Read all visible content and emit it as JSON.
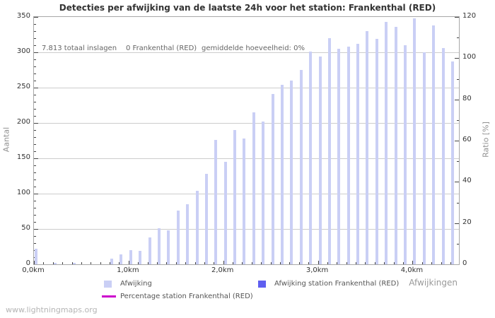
{
  "title": "Detecties per afwijking van de laatste 24h voor het station: Frankenthal (RED)",
  "annotations": {
    "total": "7.813 totaal inslagen",
    "station": "0 Frankenthal (RED)",
    "average": "gemiddelde hoeveelheid: 0%"
  },
  "watermark": "www.lightningmaps.org",
  "legend": {
    "afwijking_label": "Afwijking",
    "station_label": "Afwijking station Frankenthal (RED)",
    "percentage_label": "Percentage station Frankenthal (RED)"
  },
  "colors": {
    "bar": "#cacff5",
    "station_bar": "#5f5ff0",
    "percentage_line": "#cc00cc",
    "grid": "#cccccc",
    "spine": "#a8a8a8"
  },
  "chart_data": {
    "type": "bar",
    "title": "Detecties per afwijking van de laatste 24h voor het station: Frankenthal (RED)",
    "xlabel": "Afwijkingen",
    "ylabel_left": "Aantal",
    "ylabel_right": "Ratio [%]",
    "xlim_km": [
      0,
      4.49
    ],
    "ylim_left": [
      0,
      350
    ],
    "ylim_right": [
      0,
      120
    ],
    "grid": true,
    "legend_position": "bottom",
    "x_km": [
      0,
      0.1,
      0.2,
      0.3,
      0.4,
      0.5,
      0.6,
      0.7,
      0.8,
      0.9,
      1,
      1.1,
      1.2,
      1.3,
      1.4,
      1.5,
      1.6,
      1.7,
      1.8,
      1.9,
      2,
      2.1,
      2.2,
      2.3,
      2.4,
      2.5,
      2.6,
      2.7,
      2.8,
      2.9,
      3,
      3.1,
      3.2,
      3.3,
      3.4,
      3.5,
      3.6,
      3.7,
      3.8,
      3.9,
      4,
      4.1,
      4.2,
      4.3,
      4.4
    ],
    "series": [
      {
        "name": "Afwijking",
        "axis": "left",
        "type": "bar",
        "color": "#cacff5",
        "values": [
          22,
          0,
          2,
          0,
          2,
          0,
          0,
          0,
          8,
          14,
          20,
          19,
          38,
          51,
          48,
          76,
          85,
          104,
          128,
          176,
          145,
          190,
          178,
          215,
          202,
          241,
          254,
          260,
          275,
          301,
          294,
          320,
          305,
          308,
          312,
          330,
          319,
          343,
          336,
          310,
          348,
          300,
          338,
          306,
          287
        ]
      },
      {
        "name": "Afwijking station Frankenthal (RED)",
        "axis": "left",
        "type": "bar",
        "color": "#5f5ff0",
        "values": [
          0,
          0,
          0,
          0,
          0,
          0,
          0,
          0,
          0,
          0,
          0,
          0,
          0,
          0,
          0,
          0,
          0,
          0,
          0,
          0,
          0,
          0,
          0,
          0,
          0,
          0,
          0,
          0,
          0,
          0,
          0,
          0,
          0,
          0,
          0,
          0,
          0,
          0,
          0,
          0,
          0,
          0,
          0,
          0,
          0
        ]
      },
      {
        "name": "Percentage station Frankenthal (RED)",
        "axis": "right",
        "type": "line",
        "color": "#cc00cc",
        "values": [
          0,
          0,
          0,
          0,
          0,
          0,
          0,
          0,
          0,
          0,
          0,
          0,
          0,
          0,
          0,
          0,
          0,
          0,
          0,
          0,
          0,
          0,
          0,
          0,
          0,
          0,
          0,
          0,
          0,
          0,
          0,
          0,
          0,
          0,
          0,
          0,
          0,
          0,
          0,
          0,
          0,
          0,
          0,
          0,
          0
        ]
      }
    ],
    "left_tick_labels": [
      "0",
      "50",
      "100",
      "150",
      "200",
      "250",
      "300",
      "350"
    ],
    "right_tick_labels": [
      "0",
      "20",
      "40",
      "60",
      "80",
      "100",
      "120"
    ],
    "x_tick_labels": [
      "0,0km",
      "1,0km",
      "2,0km",
      "3,0km",
      "4,0km"
    ]
  }
}
